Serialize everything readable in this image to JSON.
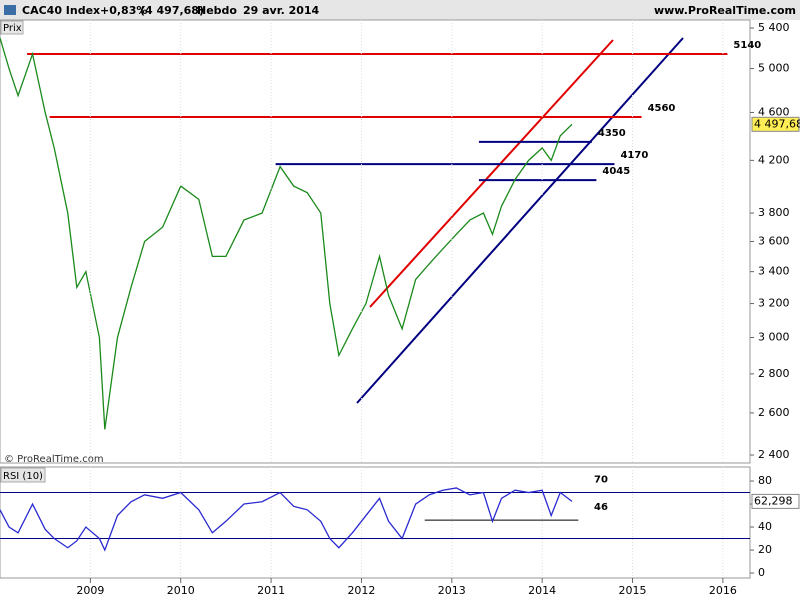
{
  "header": {
    "symbol": "CAC40 Index",
    "change": "+0,83%",
    "last": "(4 497,68)",
    "period": "Hebdo",
    "date": "29 avr. 2014",
    "site": "www.ProRealTime.com"
  },
  "chart_data": [
    {
      "type": "line",
      "panel_label": "Prix",
      "watermark": "© ProRealTime.com",
      "log_scale": true,
      "xlim": [
        2008.0,
        2016.3
      ],
      "ylim": [
        2364,
        5483
      ],
      "yticks": [
        {
          "value": 2400,
          "label": "2 400"
        },
        {
          "value": 2600,
          "label": "2 600"
        },
        {
          "value": 2800,
          "label": "2 800"
        },
        {
          "value": 3000,
          "label": "3 000"
        },
        {
          "value": 3200,
          "label": "3 200"
        },
        {
          "value": 3400,
          "label": "3 400"
        },
        {
          "value": 3600,
          "label": "3 600"
        },
        {
          "value": 3800,
          "label": "3 800"
        },
        {
          "value": 4200,
          "label": "4 200"
        },
        {
          "value": 4600,
          "label": "4 600"
        },
        {
          "value": 5000,
          "label": "5 000"
        },
        {
          "value": 5400,
          "label": "5 400"
        }
      ],
      "series": [
        {
          "name": "CAC40 Index",
          "color": "#1b8a1b",
          "x": [
            2008.0,
            2008.1,
            2008.2,
            2008.36,
            2008.5,
            2008.6,
            2008.75,
            2008.85,
            2008.95,
            2009.1,
            2009.16,
            2009.3,
            2009.45,
            2009.6,
            2009.8,
            2010.0,
            2010.2,
            2010.35,
            2010.5,
            2010.7,
            2010.9,
            2011.1,
            2011.25,
            2011.4,
            2011.55,
            2011.65,
            2011.75,
            2011.9,
            2012.05,
            2012.2,
            2012.3,
            2012.45,
            2012.6,
            2012.75,
            2012.9,
            2013.05,
            2013.2,
            2013.35,
            2013.45,
            2013.55,
            2013.7,
            2013.85,
            2014.0,
            2014.1,
            2014.2,
            2014.33
          ],
          "values": [
            5300,
            5000,
            4750,
            5140,
            4600,
            4300,
            3800,
            3300,
            3400,
            3000,
            2520,
            3000,
            3300,
            3600,
            3700,
            4000,
            3900,
            3500,
            3500,
            3750,
            3800,
            4150,
            4000,
            3950,
            3800,
            3200,
            2900,
            3050,
            3200,
            3500,
            3250,
            3050,
            3350,
            3450,
            3550,
            3650,
            3750,
            3800,
            3650,
            3850,
            4050,
            4200,
            4300,
            4200,
            4400,
            4497.68
          ]
        }
      ],
      "last_value": {
        "value": 4497.68,
        "label": "4 497,68"
      },
      "levels": [
        {
          "value": 5140,
          "x": [
            2008.3,
            2016.05
          ],
          "color": "#e00000",
          "labeled": true
        },
        {
          "value": 4560,
          "x": [
            2008.55,
            2015.1
          ],
          "color": "#e00000",
          "labeled": true
        },
        {
          "value": 4350,
          "x": [
            2013.3,
            2014.55
          ],
          "color": "#000080",
          "labeled": true
        },
        {
          "value": 4170,
          "x": [
            2011.05,
            2014.8
          ],
          "color": "#000080",
          "labeled": true
        },
        {
          "value": 4045,
          "x": [
            2013.3,
            2014.6
          ],
          "color": "#000080",
          "labeled": true
        }
      ]
    },
    {
      "type": "line",
      "title": "RSI (10)",
      "log_scale": false,
      "xlim": [
        2008.0,
        2016.3
      ],
      "ylim": [
        -4.3,
        92.2
      ],
      "xticks": [
        2009,
        2010,
        2011,
        2012,
        2013,
        2014,
        2015,
        2016
      ],
      "yticks": [
        0,
        20,
        40,
        60,
        80
      ],
      "series": [
        {
          "name": "RSI (10)",
          "color": "#2a2ad0",
          "x": [
            2008.0,
            2008.1,
            2008.2,
            2008.36,
            2008.5,
            2008.6,
            2008.75,
            2008.85,
            2008.95,
            2009.1,
            2009.16,
            2009.3,
            2009.45,
            2009.6,
            2009.8,
            2010.0,
            2010.2,
            2010.35,
            2010.5,
            2010.7,
            2010.9,
            2011.1,
            2011.25,
            2011.4,
            2011.55,
            2011.65,
            2011.75,
            2011.9,
            2012.05,
            2012.2,
            2012.3,
            2012.45,
            2012.6,
            2012.75,
            2012.9,
            2013.05,
            2013.2,
            2013.35,
            2013.45,
            2013.55,
            2013.7,
            2013.85,
            2014.0,
            2014.1,
            2014.2,
            2014.33
          ],
          "values": [
            55,
            40,
            35,
            60,
            38,
            30,
            22,
            28,
            40,
            30,
            20,
            50,
            62,
            68,
            65,
            70,
            55,
            35,
            45,
            60,
            62,
            70,
            58,
            55,
            45,
            30,
            22,
            35,
            50,
            65,
            45,
            30,
            60,
            68,
            72,
            74,
            68,
            70,
            45,
            65,
            72,
            70,
            72,
            50,
            70,
            62.298
          ]
        }
      ],
      "last_value": {
        "value": 62.298,
        "label": "62,298"
      },
      "levels": [
        {
          "value": 70,
          "x": [
            2008.0,
            2016.3
          ],
          "color": "#000080",
          "labeled": true
        },
        {
          "value": 30,
          "x": [
            2008.0,
            2016.3
          ],
          "color": "#000080",
          "labeled": false
        },
        {
          "value": 46,
          "x": [
            2012.7,
            2014.4
          ],
          "color": "#000000",
          "labeled": true
        }
      ]
    }
  ]
}
